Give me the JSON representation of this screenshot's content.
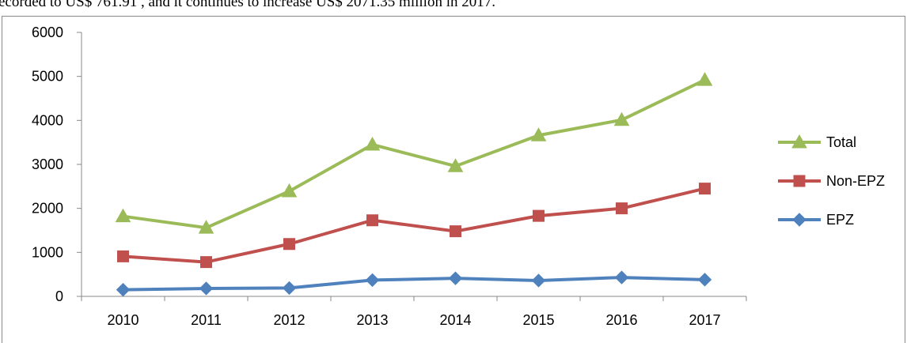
{
  "header_text": "ecorded to US$ 761.91 , and it continues to increase US$ 2071.35 million in 2017.",
  "chart_data": {
    "type": "line",
    "categories": [
      "2010",
      "2011",
      "2012",
      "2013",
      "2014",
      "2015",
      "2016",
      "2017"
    ],
    "series": [
      {
        "name": "Total",
        "color": "#9bbb59",
        "marker": "triangle",
        "values": [
          1820,
          1560,
          2390,
          3450,
          2960,
          3660,
          4010,
          4920
        ]
      },
      {
        "name": "Non-EPZ",
        "color": "#c0504d",
        "marker": "square",
        "values": [
          910,
          780,
          1190,
          1730,
          1480,
          1830,
          2000,
          2450
        ]
      },
      {
        "name": "EPZ",
        "color": "#4f81bd",
        "marker": "diamond",
        "values": [
          150,
          180,
          190,
          370,
          410,
          360,
          430,
          380
        ]
      }
    ],
    "ylim": [
      0,
      6000
    ],
    "yticks": [
      0,
      1000,
      2000,
      3000,
      4000,
      5000,
      6000
    ],
    "grid": false,
    "legend": "right"
  }
}
